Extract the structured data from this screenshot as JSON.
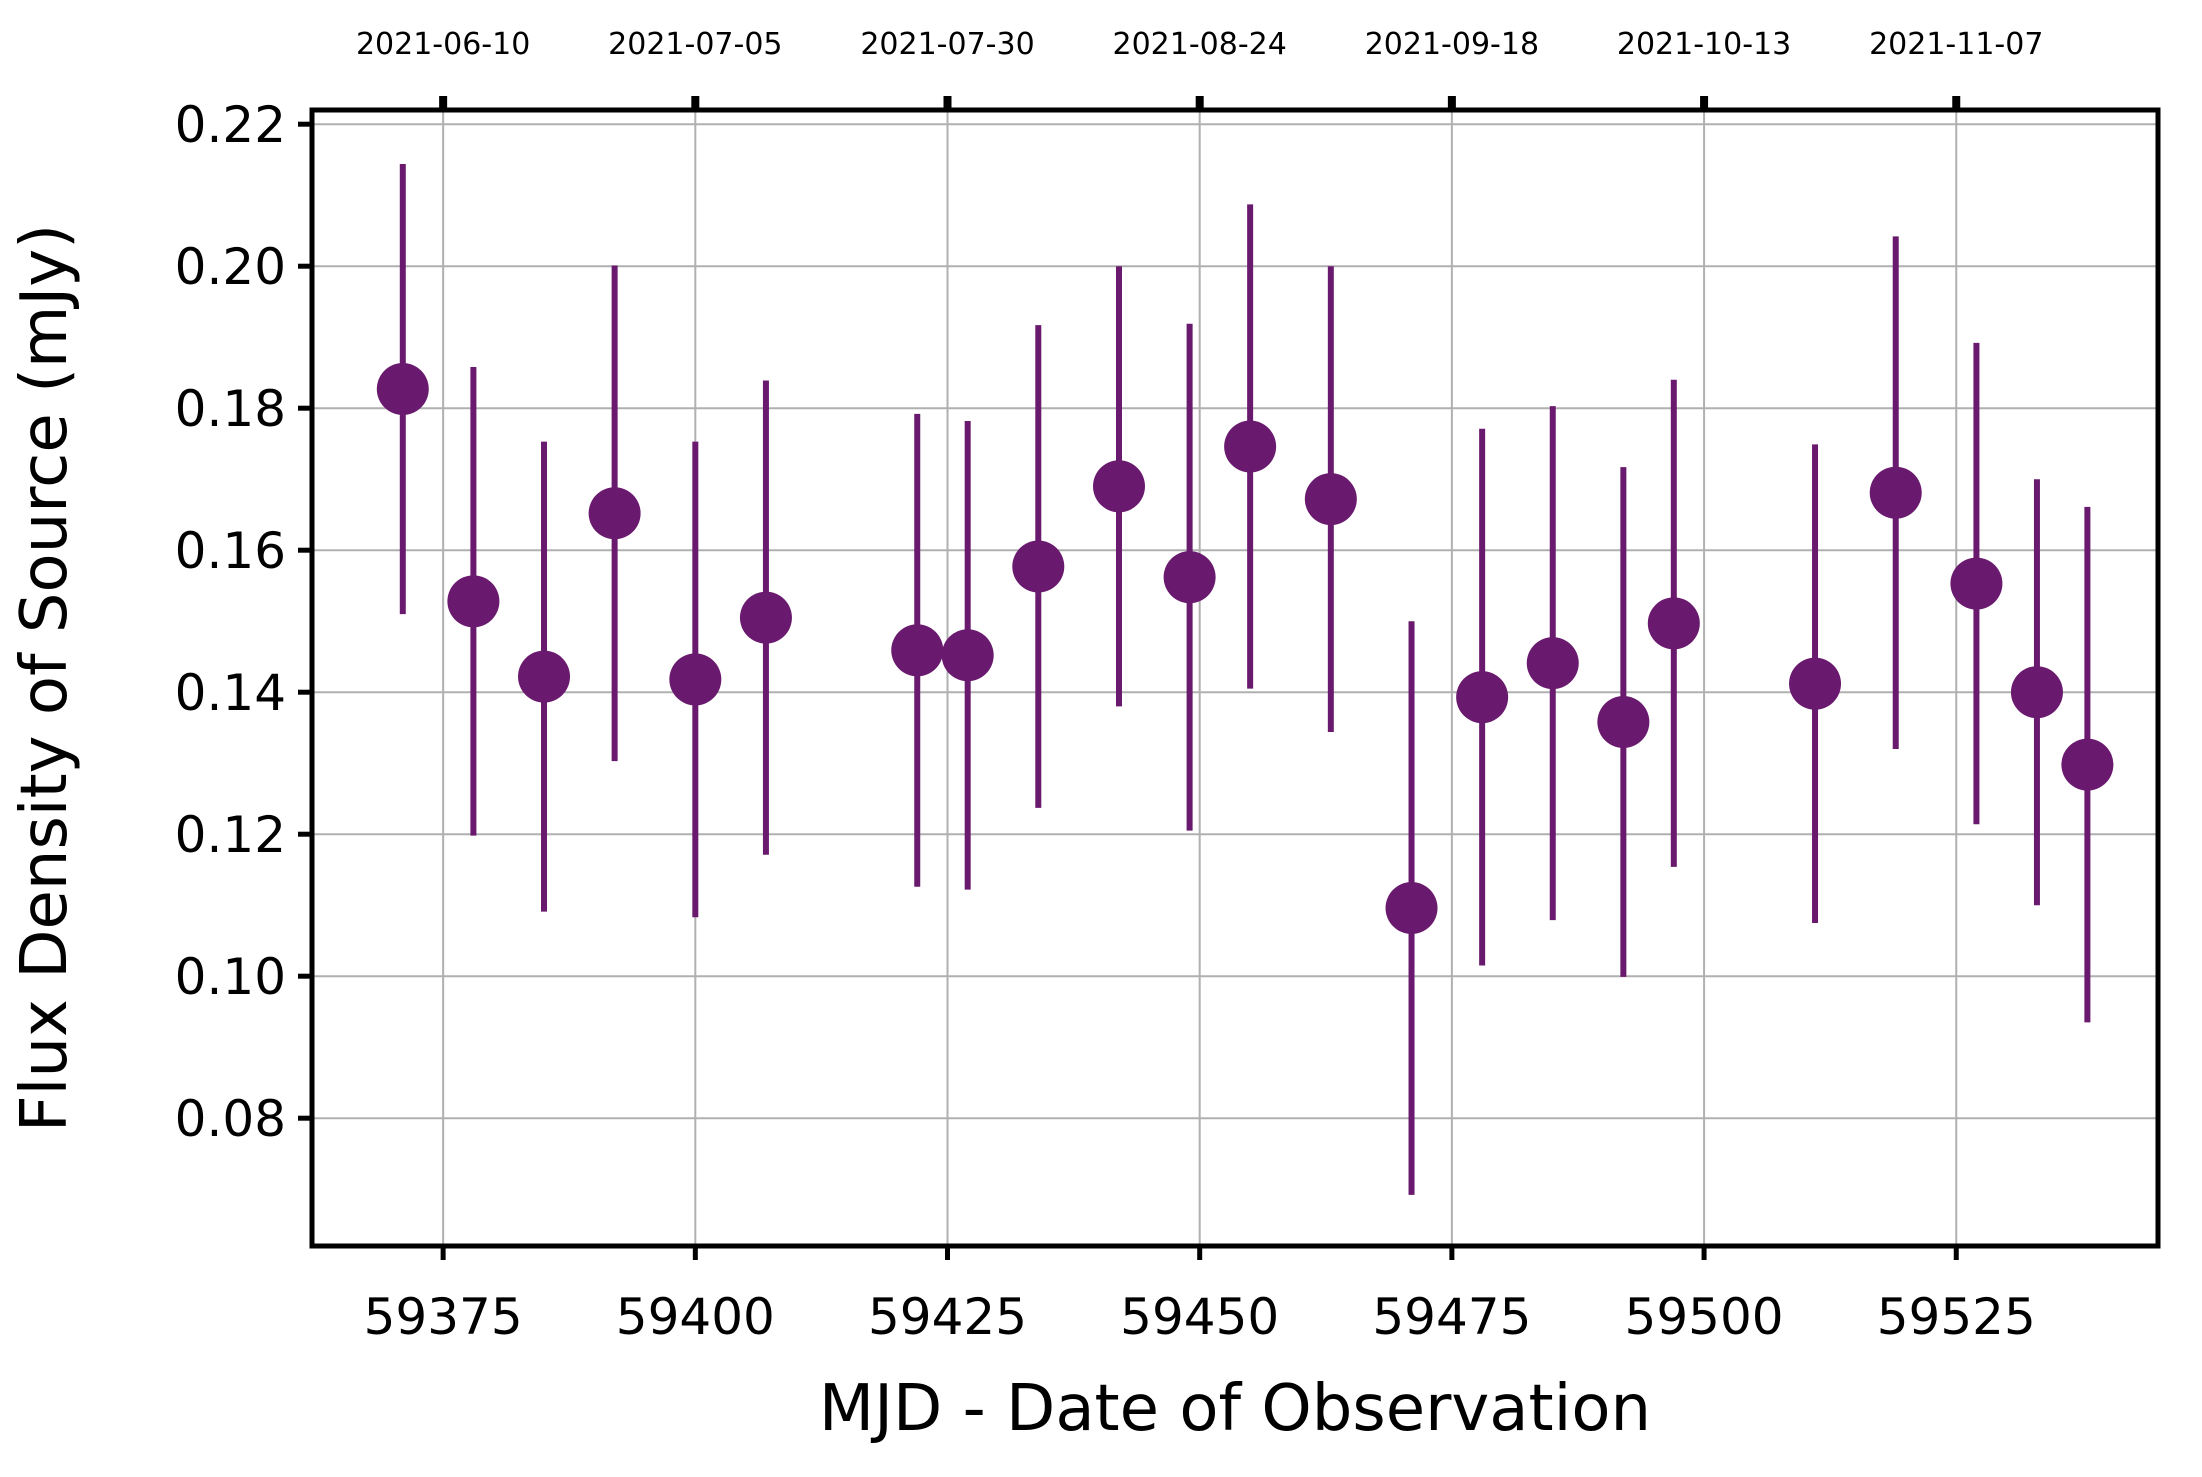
{
  "chart_data": {
    "type": "scatter",
    "title": "",
    "xlabel": "MJD - Date of Observation",
    "ylabel": "Flux Density of Source (mJy)",
    "xlim": [
      59362,
      59545
    ],
    "ylim": [
      0.062,
      0.222
    ],
    "grid": true,
    "legend": "none",
    "marker_color": "#6a1a6e",
    "x_ticks": [
      59375,
      59400,
      59425,
      59450,
      59475,
      59500,
      59525
    ],
    "x_tick_labels": [
      "59375",
      "59400",
      "59425",
      "59450",
      "59475",
      "59500",
      "59525"
    ],
    "y_ticks": [
      0.08,
      0.1,
      0.12,
      0.14,
      0.16,
      0.18,
      0.2,
      0.22
    ],
    "y_tick_labels": [
      "0.08",
      "0.10",
      "0.12",
      "0.14",
      "0.16",
      "0.18",
      "0.20",
      "0.22"
    ],
    "top_ticks": [
      59375,
      59400,
      59425,
      59450,
      59475,
      59500,
      59525
    ],
    "top_tick_labels": [
      "2021-06-10",
      "2021-07-05",
      "2021-07-30",
      "2021-08-24",
      "2021-09-18",
      "2021-10-13",
      "2021-11-07"
    ],
    "points": [
      {
        "x": 59371,
        "y": 0.1827,
        "err": 0.0317
      },
      {
        "x": 59378,
        "y": 0.1528,
        "err": 0.033
      },
      {
        "x": 59385,
        "y": 0.1422,
        "err": 0.0331
      },
      {
        "x": 59392,
        "y": 0.1652,
        "err": 0.0349
      },
      {
        "x": 59400,
        "y": 0.1418,
        "err": 0.0335
      },
      {
        "x": 59407,
        "y": 0.1505,
        "err": 0.0334
      },
      {
        "x": 59422,
        "y": 0.1459,
        "err": 0.0333
      },
      {
        "x": 59427,
        "y": 0.1452,
        "err": 0.033
      },
      {
        "x": 59434,
        "y": 0.1577,
        "err": 0.034
      },
      {
        "x": 59442,
        "y": 0.169,
        "err": 0.031
      },
      {
        "x": 59449,
        "y": 0.1562,
        "err": 0.0357
      },
      {
        "x": 59455,
        "y": 0.1746,
        "err": 0.0341
      },
      {
        "x": 59463,
        "y": 0.1672,
        "err": 0.0328
      },
      {
        "x": 59471,
        "y": 0.1096,
        "err": 0.0404
      },
      {
        "x": 59478,
        "y": 0.1393,
        "err": 0.0378
      },
      {
        "x": 59485,
        "y": 0.1441,
        "err": 0.0362
      },
      {
        "x": 59492,
        "y": 0.1358,
        "err": 0.0359
      },
      {
        "x": 59497,
        "y": 0.1497,
        "err": 0.0343
      },
      {
        "x": 59511,
        "y": 0.1412,
        "err": 0.0337
      },
      {
        "x": 59519,
        "y": 0.1681,
        "err": 0.0361
      },
      {
        "x": 59527,
        "y": 0.1553,
        "err": 0.0339
      },
      {
        "x": 59533,
        "y": 0.14,
        "err": 0.03
      },
      {
        "x": 59538,
        "y": 0.1298,
        "err": 0.0363
      }
    ]
  }
}
